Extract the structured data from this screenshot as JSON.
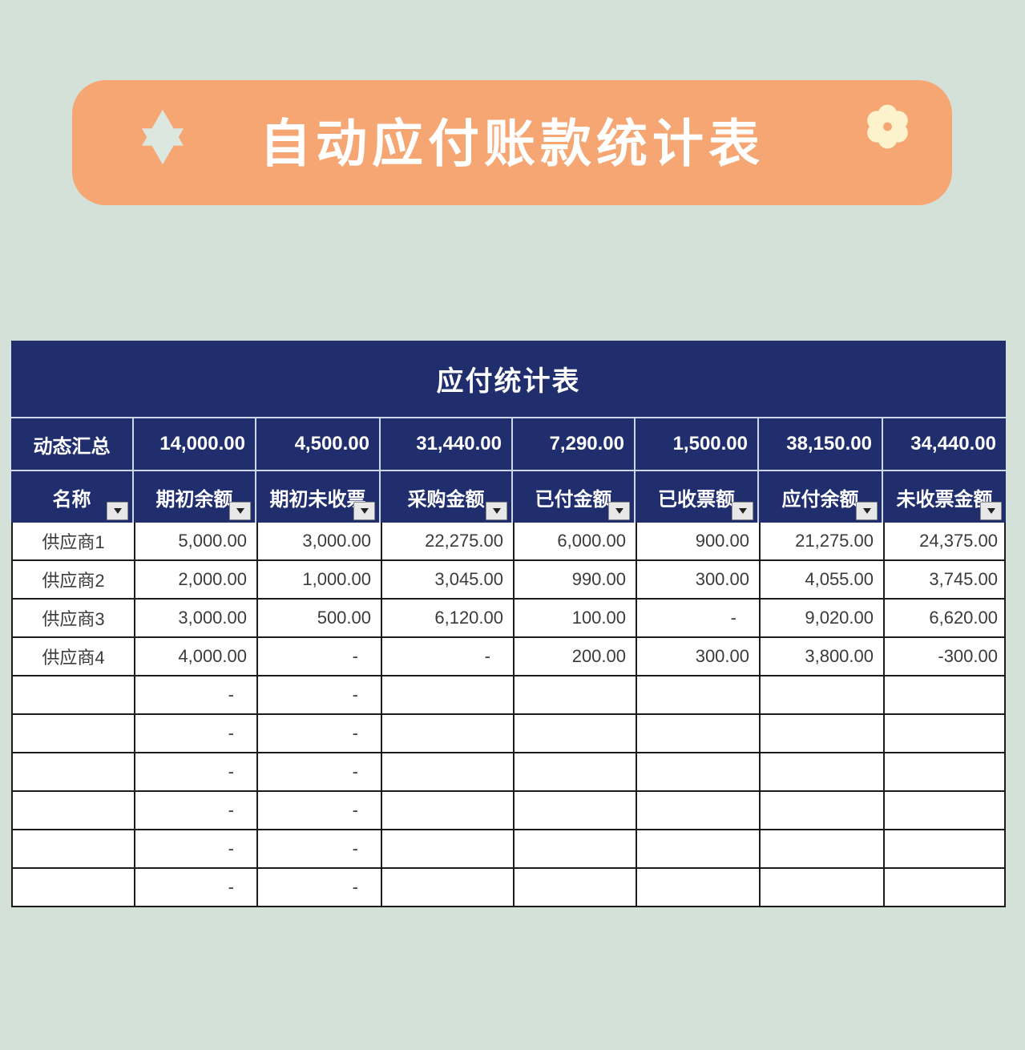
{
  "banner": {
    "title": "自动应付账款统计表",
    "left_icon": "six-pointed-star",
    "right_icon": "flower"
  },
  "table": {
    "title": "应付统计表",
    "summary": {
      "label": "动态汇总",
      "values": [
        "14,000.00",
        "4,500.00",
        "31,440.00",
        "7,290.00",
        "1,500.00",
        "38,150.00",
        "34,440.00"
      ]
    },
    "columns": [
      "名称",
      "期初余额",
      "期初未收票",
      "采购金额",
      "已付金额",
      "已收票额",
      "应付余额",
      "未收票金额"
    ],
    "rows": [
      [
        "供应商1",
        "5,000.00",
        "3,000.00",
        "22,275.00",
        "6,000.00",
        "900.00",
        "21,275.00",
        "24,375.00"
      ],
      [
        "供应商2",
        "2,000.00",
        "1,000.00",
        "3,045.00",
        "990.00",
        "300.00",
        "4,055.00",
        "3,745.00"
      ],
      [
        "供应商3",
        "3,000.00",
        "500.00",
        "6,120.00",
        "100.00",
        "-",
        "9,020.00",
        "6,620.00"
      ],
      [
        "供应商4",
        "4,000.00",
        "-",
        "-",
        "200.00",
        "300.00",
        "3,800.00",
        "-300.00"
      ],
      [
        "",
        "-",
        "-",
        "",
        "",
        "",
        "",
        ""
      ],
      [
        "",
        "-",
        "-",
        "",
        "",
        "",
        "",
        ""
      ],
      [
        "",
        "-",
        "-",
        "",
        "",
        "",
        "",
        ""
      ],
      [
        "",
        "-",
        "-",
        "",
        "",
        "",
        "",
        ""
      ],
      [
        "",
        "-",
        "-",
        "",
        "",
        "",
        "",
        ""
      ],
      [
        "",
        "-",
        "-",
        "",
        "",
        "",
        "",
        ""
      ]
    ]
  },
  "colors": {
    "page_background": "#d3e1d9",
    "banner_orange": "#f5a673",
    "banner_title_text": "#ffffff",
    "star_mint": "#dbe7df",
    "flower_cream": "#fcf3cd",
    "table_navy": "#202e6e",
    "navy_divider": "#cdd7e8",
    "body_text": "#3b3b3b",
    "grid_line": "#1c1c1c",
    "filter_button_bg": "#e8e8e8"
  }
}
